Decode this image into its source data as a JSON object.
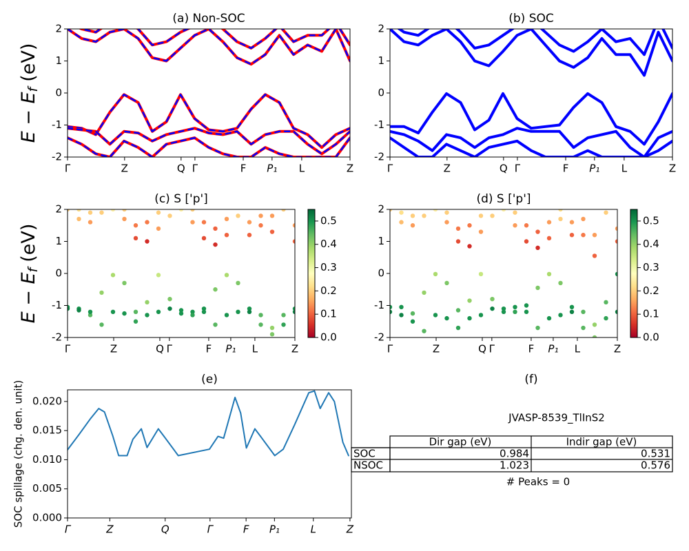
{
  "chart_data": [
    {
      "type": "bands",
      "title": "(a) Non-SOC",
      "ylabel": {
        "main": "E − E",
        "sub": "f",
        "unit": "(eV)"
      },
      "x": [
        0,
        0.05,
        0.1,
        0.15,
        0.2,
        0.25,
        0.3,
        0.35,
        0.4,
        0.45,
        0.5,
        0.55,
        0.6,
        0.65,
        0.7,
        0.75,
        0.8,
        0.85,
        0.9,
        0.95,
        1.0
      ],
      "xlim": [
        0,
        1
      ],
      "xticks": [
        {
          "value": 0,
          "label": "Γ"
        },
        {
          "value": 0.202,
          "label": "Z"
        },
        {
          "value": 0.402,
          "label": "Q"
        },
        {
          "value": 0.451,
          "label": "Γ"
        },
        {
          "value": 0.622,
          "label": "F"
        },
        {
          "value": 0.724,
          "label": "P₁"
        },
        {
          "value": 0.829,
          "label": "L"
        },
        {
          "value": 1,
          "label": "Z"
        }
      ],
      "ylim": [
        -2,
        2
      ],
      "yticks": [
        -2,
        -1,
        0,
        1,
        2
      ],
      "color": "#ff0000",
      "dash_color": "#0000ff",
      "series": [
        {
          "values": [
            -1.05,
            -1.1,
            -1.3,
            -0.6,
            -0.05,
            -0.3,
            -1.2,
            -0.9,
            -0.05,
            -0.8,
            -1.15,
            -1.2,
            -1.1,
            -0.5,
            -0.05,
            -0.3,
            -1.1,
            -1.3,
            -1.7,
            -1.3,
            -1.1
          ]
        },
        {
          "values": [
            -1.1,
            -1.15,
            -1.2,
            -1.6,
            -1.2,
            -1.25,
            -1.5,
            -1.3,
            -1.2,
            -1.1,
            -1.25,
            -1.3,
            -1.2,
            -1.6,
            -1.3,
            -1.2,
            -1.2,
            -1.6,
            -1.9,
            -1.6,
            -1.2
          ]
        },
        {
          "values": [
            -1.4,
            -1.6,
            -1.9,
            -2.0,
            -1.5,
            -1.7,
            -2.0,
            -1.6,
            -1.5,
            -1.4,
            -1.7,
            -1.9,
            -2.0,
            -2.0,
            -1.7,
            -1.9,
            -2.0,
            -2.0,
            -2.0,
            -2.0,
            -1.4
          ]
        },
        {
          "values": [
            2.0,
            1.7,
            1.6,
            1.9,
            2.0,
            1.7,
            1.1,
            1.0,
            1.4,
            1.8,
            2.0,
            1.6,
            1.1,
            0.9,
            1.2,
            1.8,
            1.2,
            1.5,
            1.3,
            2.0,
            1.0
          ]
        },
        {
          "values": [
            2.2,
            2.0,
            1.9,
            2.2,
            2.3,
            2.0,
            1.5,
            1.6,
            1.9,
            2.1,
            2.3,
            2.0,
            1.6,
            1.4,
            1.7,
            2.1,
            1.6,
            1.8,
            1.8,
            2.2,
            1.5
          ]
        }
      ]
    },
    {
      "type": "bands",
      "title": "(b) SOC",
      "x": [
        0,
        0.05,
        0.1,
        0.15,
        0.2,
        0.25,
        0.3,
        0.35,
        0.4,
        0.45,
        0.5,
        0.55,
        0.6,
        0.65,
        0.7,
        0.75,
        0.8,
        0.85,
        0.9,
        0.95,
        1.0
      ],
      "xlim": [
        0,
        1
      ],
      "xticks": [
        {
          "value": 0,
          "label": "Γ"
        },
        {
          "value": 0.202,
          "label": "Z"
        },
        {
          "value": 0.402,
          "label": "Q"
        },
        {
          "value": 0.451,
          "label": "Γ"
        },
        {
          "value": 0.622,
          "label": "F"
        },
        {
          "value": 0.724,
          "label": "P₁"
        },
        {
          "value": 0.829,
          "label": "L"
        },
        {
          "value": 1,
          "label": "Z"
        }
      ],
      "ylim": [
        -2,
        2
      ],
      "yticks": [
        -2,
        -1,
        0,
        1,
        2
      ],
      "color": "#0000ff",
      "series": [
        {
          "values": [
            -1.05,
            -1.05,
            -1.25,
            -0.6,
            -0.02,
            -0.3,
            -1.15,
            -0.85,
            -0.02,
            -0.8,
            -1.1,
            -1.05,
            -1.0,
            -0.45,
            -0.02,
            -0.3,
            -1.05,
            -1.2,
            -1.6,
            -0.9,
            -0.02
          ]
        },
        {
          "values": [
            -1.2,
            -1.3,
            -1.5,
            -1.8,
            -1.3,
            -1.4,
            -1.7,
            -1.4,
            -1.3,
            -1.1,
            -1.2,
            -1.2,
            -1.2,
            -1.7,
            -1.4,
            -1.3,
            -1.2,
            -1.7,
            -2.0,
            -1.4,
            -1.2
          ]
        },
        {
          "values": [
            -1.4,
            -1.7,
            -2.0,
            -2.0,
            -1.6,
            -1.8,
            -2.0,
            -1.7,
            -1.6,
            -1.5,
            -1.8,
            -2.0,
            -2.0,
            -2.0,
            -1.8,
            -2.0,
            -2.0,
            -2.0,
            -2.0,
            -1.8,
            -1.5
          ]
        },
        {
          "values": [
            2.0,
            1.6,
            1.5,
            1.8,
            2.0,
            1.6,
            1.0,
            0.85,
            1.3,
            1.8,
            2.0,
            1.5,
            1.0,
            0.8,
            1.1,
            1.7,
            1.2,
            1.2,
            0.55,
            1.9,
            1.0
          ]
        },
        {
          "values": [
            2.2,
            1.9,
            1.8,
            2.1,
            2.3,
            1.9,
            1.4,
            1.5,
            1.8,
            2.1,
            2.3,
            1.9,
            1.5,
            1.3,
            1.6,
            2.0,
            1.6,
            1.7,
            1.2,
            2.3,
            1.4
          ]
        }
      ]
    },
    {
      "type": "scatter_bands",
      "title": "(c)  S ['p']",
      "ylabel": {
        "main": "E − E",
        "sub": "f",
        "unit": "(eV)"
      },
      "x": [
        0,
        0.05,
        0.1,
        0.15,
        0.2,
        0.25,
        0.3,
        0.35,
        0.4,
        0.45,
        0.5,
        0.55,
        0.6,
        0.65,
        0.7,
        0.75,
        0.8,
        0.85,
        0.9,
        0.95,
        1.0
      ],
      "xlim": [
        0,
        1
      ],
      "xticks": [
        {
          "value": 0,
          "label": "Γ"
        },
        {
          "value": 0.203,
          "label": "Z"
        },
        {
          "value": 0.406,
          "label": "Q"
        },
        {
          "value": 0.448,
          "label": "Γ"
        },
        {
          "value": 0.621,
          "label": "F"
        },
        {
          "value": 0.718,
          "label": "P₁"
        },
        {
          "value": 0.824,
          "label": "L"
        },
        {
          "value": 1,
          "label": "Z"
        }
      ],
      "ylim": [
        -2,
        2
      ],
      "yticks": [
        -2,
        -1,
        0,
        1,
        2
      ],
      "clim": [
        0,
        0.55
      ],
      "cticks": [
        {
          "value": 0,
          "label": "0.0"
        },
        0.1,
        0.2,
        0.3,
        0.4,
        0.5
      ],
      "cmap": [
        "#a50026",
        "#d73027",
        "#f46d43",
        "#fdae61",
        "#fee08b",
        "#ffffbf",
        "#d9ef8b",
        "#a6d96a",
        "#66bd63",
        "#1a9850",
        "#006837"
      ],
      "series": [
        {
          "values": [
            -1.05,
            -1.1,
            -1.3,
            -0.6,
            -0.05,
            -0.3,
            -1.2,
            -0.9,
            -0.05,
            -0.8,
            -1.15,
            -1.2,
            -1.1,
            -0.5,
            -0.05,
            -0.3,
            -1.1,
            -1.3,
            -1.7,
            -1.3,
            -1.1
          ],
          "weights": [
            0.5,
            0.5,
            0.45,
            0.4,
            0.38,
            0.42,
            0.45,
            0.4,
            0.35,
            0.42,
            0.5,
            0.5,
            0.5,
            0.42,
            0.38,
            0.42,
            0.5,
            0.45,
            0.4,
            0.45,
            0.5
          ]
        },
        {
          "values": [
            -1.1,
            -1.15,
            -1.2,
            -1.6,
            -1.2,
            -1.25,
            -1.5,
            -1.3,
            -1.2,
            -1.1,
            -1.25,
            -1.3,
            -1.2,
            -1.6,
            -1.3,
            -1.2,
            -1.2,
            -1.6,
            -1.9,
            -1.6,
            -1.2
          ],
          "weights": [
            0.52,
            0.52,
            0.5,
            0.45,
            0.5,
            0.5,
            0.48,
            0.5,
            0.5,
            0.52,
            0.5,
            0.48,
            0.5,
            0.45,
            0.5,
            0.5,
            0.52,
            0.45,
            0.42,
            0.48,
            0.52
          ]
        },
        {
          "values": [
            2.0,
            1.7,
            1.6,
            1.9,
            2.0,
            1.7,
            1.1,
            1.0,
            1.4,
            1.8,
            2.0,
            1.6,
            1.1,
            0.9,
            1.2,
            1.8,
            1.2,
            1.5,
            1.3,
            2.0,
            1.0
          ],
          "weights": [
            0.2,
            0.18,
            0.15,
            0.2,
            0.25,
            0.15,
            0.08,
            0.05,
            0.15,
            0.2,
            0.25,
            0.15,
            0.08,
            0.05,
            0.1,
            0.2,
            0.1,
            0.12,
            0.1,
            0.2,
            0.1
          ]
        },
        {
          "values": [
            2.2,
            2.0,
            1.9,
            2.2,
            2.3,
            2.0,
            1.5,
            1.6,
            1.9,
            2.1,
            2.3,
            2.0,
            1.6,
            1.4,
            1.7,
            2.1,
            1.6,
            1.8,
            1.8,
            2.2,
            1.5
          ],
          "weights": [
            0.25,
            0.22,
            0.2,
            0.22,
            0.25,
            0.2,
            0.12,
            0.12,
            0.2,
            0.22,
            0.25,
            0.2,
            0.12,
            0.1,
            0.15,
            0.22,
            0.15,
            0.15,
            0.15,
            0.22,
            0.15
          ]
        }
      ]
    },
    {
      "type": "scatter_bands",
      "title": "(d) S ['p']",
      "x": [
        0,
        0.05,
        0.1,
        0.15,
        0.2,
        0.25,
        0.3,
        0.35,
        0.4,
        0.45,
        0.5,
        0.55,
        0.6,
        0.65,
        0.7,
        0.75,
        0.8,
        0.85,
        0.9,
        0.95,
        1.0
      ],
      "xlim": [
        0,
        1
      ],
      "xticks": [
        {
          "value": 0,
          "label": "Γ"
        },
        {
          "value": 0.203,
          "label": "Z"
        },
        {
          "value": 0.406,
          "label": "Q"
        },
        {
          "value": 0.448,
          "label": "Γ"
        },
        {
          "value": 0.621,
          "label": "F"
        },
        {
          "value": 0.718,
          "label": "P₁"
        },
        {
          "value": 0.824,
          "label": "L"
        },
        {
          "value": 1,
          "label": "Z"
        }
      ],
      "ylim": [
        -2,
        2
      ],
      "yticks": [
        -2,
        -1,
        0,
        1,
        2
      ],
      "clim": [
        0,
        0.55
      ],
      "cticks": [
        {
          "value": 0,
          "label": "0.0"
        },
        0.1,
        0.2,
        0.3,
        0.4,
        0.5
      ],
      "cmap": [
        "#a50026",
        "#d73027",
        "#f46d43",
        "#fdae61",
        "#fee08b",
        "#ffffbf",
        "#d9ef8b",
        "#a6d96a",
        "#66bd63",
        "#1a9850",
        "#006837"
      ],
      "series": [
        {
          "values": [
            -1.05,
            -1.05,
            -1.25,
            -0.6,
            -0.02,
            -0.3,
            -1.15,
            -0.85,
            -0.02,
            -0.8,
            -1.1,
            -1.05,
            -1.0,
            -0.45,
            -0.02,
            -0.3,
            -1.05,
            -1.2,
            -1.6,
            -0.9,
            -0.02
          ],
          "weights": [
            0.5,
            0.5,
            0.45,
            0.4,
            0.38,
            0.42,
            0.45,
            0.4,
            0.35,
            0.42,
            0.5,
            0.5,
            0.5,
            0.42,
            0.38,
            0.42,
            0.5,
            0.45,
            0.4,
            0.45,
            0.5
          ]
        },
        {
          "values": [
            -1.2,
            -1.3,
            -1.5,
            -1.8,
            -1.3,
            -1.4,
            -1.7,
            -1.4,
            -1.3,
            -1.1,
            -1.2,
            -1.2,
            -1.2,
            -1.7,
            -1.4,
            -1.3,
            -1.2,
            -1.7,
            -2.0,
            -1.4,
            -1.2
          ],
          "weights": [
            0.52,
            0.52,
            0.5,
            0.45,
            0.5,
            0.5,
            0.48,
            0.5,
            0.5,
            0.52,
            0.5,
            0.48,
            0.5,
            0.45,
            0.5,
            0.5,
            0.52,
            0.45,
            0.42,
            0.48,
            0.52
          ]
        },
        {
          "values": [
            2.0,
            1.6,
            1.5,
            1.8,
            2.0,
            1.6,
            1.0,
            0.85,
            1.3,
            1.8,
            2.0,
            1.5,
            1.0,
            0.8,
            1.1,
            1.7,
            1.2,
            1.2,
            0.55,
            1.9,
            1.0
          ],
          "weights": [
            0.2,
            0.18,
            0.15,
            0.2,
            0.25,
            0.15,
            0.08,
            0.05,
            0.15,
            0.2,
            0.25,
            0.15,
            0.08,
            0.05,
            0.1,
            0.2,
            0.1,
            0.12,
            0.1,
            0.2,
            0.1
          ]
        },
        {
          "values": [
            2.2,
            1.9,
            1.8,
            2.1,
            2.3,
            1.9,
            1.4,
            1.5,
            1.8,
            2.1,
            2.3,
            1.9,
            1.5,
            1.3,
            1.6,
            2.0,
            1.6,
            1.7,
            1.2,
            2.3,
            1.4
          ],
          "weights": [
            0.25,
            0.22,
            0.2,
            0.22,
            0.25,
            0.2,
            0.12,
            0.12,
            0.2,
            0.22,
            0.25,
            0.2,
            0.12,
            0.1,
            0.15,
            0.22,
            0.15,
            0.15,
            0.15,
            0.22,
            0.15
          ]
        }
      ]
    },
    {
      "type": "line",
      "title": "(e)",
      "ylabel": "SOC spillage (chg. den. unit)",
      "x": [
        0,
        0.04,
        0.08,
        0.11,
        0.13,
        0.16,
        0.18,
        0.21,
        0.23,
        0.26,
        0.28,
        0.32,
        0.34,
        0.39,
        0.5,
        0.53,
        0.55,
        0.59,
        0.61,
        0.63,
        0.66,
        0.68,
        0.73,
        0.76,
        0.8,
        0.85,
        0.87,
        0.89,
        0.92,
        0.94,
        0.97,
        0.99
      ],
      "values": [
        0.0117,
        0.0143,
        0.017,
        0.0188,
        0.0182,
        0.014,
        0.0107,
        0.0107,
        0.0135,
        0.0153,
        0.0121,
        0.0153,
        0.014,
        0.0107,
        0.0118,
        0.014,
        0.0137,
        0.0207,
        0.018,
        0.012,
        0.0153,
        0.014,
        0.0107,
        0.0118,
        0.016,
        0.0215,
        0.0218,
        0.0188,
        0.0215,
        0.02,
        0.013,
        0.0107
      ],
      "color": "#1f77b4",
      "xlim": [
        0,
        1
      ],
      "xticks": [
        {
          "value": 0,
          "label": "Γ"
        },
        {
          "value": 0.149,
          "label": "Z"
        },
        {
          "value": 0.344,
          "label": "Q"
        },
        {
          "value": 0.502,
          "label": "Γ"
        },
        {
          "value": 0.629,
          "label": "F"
        },
        {
          "value": 0.729,
          "label": "P₁"
        },
        {
          "value": 0.866,
          "label": "L"
        },
        {
          "value": 0.995,
          "label": "Z"
        }
      ],
      "ylim": [
        0,
        0.022
      ],
      "yticks": [
        {
          "value": 0,
          "label": "0.000"
        },
        0.005,
        {
          "value": 0.01,
          "label": "0.010"
        },
        0.015,
        {
          "value": 0.02,
          "label": "0.020"
        }
      ]
    }
  ],
  "table": {
    "title": "(f)",
    "caption": "JVASP-8539_TlInS2",
    "columns": [
      "Dir gap (eV)",
      "Indir gap (eV)"
    ],
    "rows": [
      [
        "SOC",
        0.984,
        0.531
      ],
      [
        "NSOC",
        1.023,
        0.576
      ]
    ],
    "note": "# Peaks = 0"
  }
}
